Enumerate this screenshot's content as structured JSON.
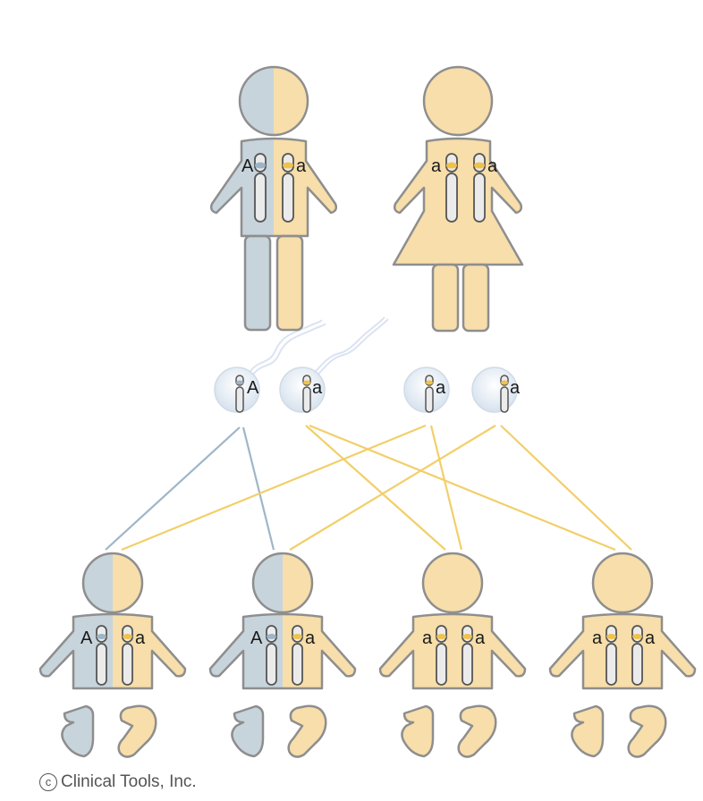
{
  "colors": {
    "affected": "#c7d4dc",
    "unaffected": "#f7deaa",
    "outline": "#8e8e8e",
    "allele_A_band": "#9cb4c6",
    "allele_a_band": "#f0c24a",
    "line_A": "#9fb6c8",
    "line_a": "#f2cf6a",
    "chromosome_fill": "#ebebeb"
  },
  "parents": [
    {
      "id": "father",
      "alleles": [
        "A",
        "a"
      ]
    },
    {
      "id": "mother",
      "alleles": [
        "a",
        "a"
      ]
    }
  ],
  "gametes": [
    {
      "from": "father",
      "allele": "A"
    },
    {
      "from": "father",
      "allele": "a"
    },
    {
      "from": "mother",
      "allele": "a"
    },
    {
      "from": "mother",
      "allele": "a"
    }
  ],
  "children": [
    {
      "alleles": [
        "A",
        "a"
      ]
    },
    {
      "alleles": [
        "A",
        "a"
      ]
    },
    {
      "alleles": [
        "a",
        "a"
      ]
    },
    {
      "alleles": [
        "a",
        "a"
      ]
    }
  ],
  "copyright": {
    "symbol": "c",
    "text": "Clinical Tools, Inc."
  }
}
